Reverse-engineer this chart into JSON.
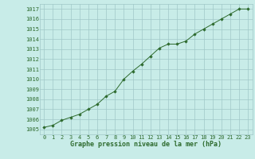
{
  "x": [
    0,
    1,
    2,
    3,
    4,
    5,
    6,
    7,
    8,
    9,
    10,
    11,
    12,
    13,
    14,
    15,
    16,
    17,
    18,
    19,
    20,
    21,
    22,
    23
  ],
  "y": [
    1005.2,
    1005.4,
    1005.9,
    1006.2,
    1006.5,
    1007.0,
    1007.5,
    1008.3,
    1008.8,
    1010.0,
    1010.8,
    1011.5,
    1012.3,
    1013.1,
    1013.5,
    1013.5,
    1013.8,
    1014.5,
    1015.0,
    1015.5,
    1016.0,
    1016.5,
    1017.0,
    1017.0
  ],
  "line_color": "#2d6a2d",
  "marker": "D",
  "marker_size": 1.8,
  "bg_color": "#c8ece8",
  "grid_color": "#a0c8c8",
  "xlabel": "Graphe pression niveau de la mer (hPa)",
  "xlabel_fontsize": 6.0,
  "tick_fontsize": 5.0,
  "ylim": [
    1004.5,
    1017.5
  ],
  "yticks": [
    1005,
    1006,
    1007,
    1008,
    1009,
    1010,
    1011,
    1012,
    1013,
    1014,
    1015,
    1016,
    1017
  ],
  "xlim": [
    -0.5,
    23.5
  ],
  "xticks": [
    0,
    1,
    2,
    3,
    4,
    5,
    6,
    7,
    8,
    9,
    10,
    11,
    12,
    13,
    14,
    15,
    16,
    17,
    18,
    19,
    20,
    21,
    22,
    23
  ]
}
